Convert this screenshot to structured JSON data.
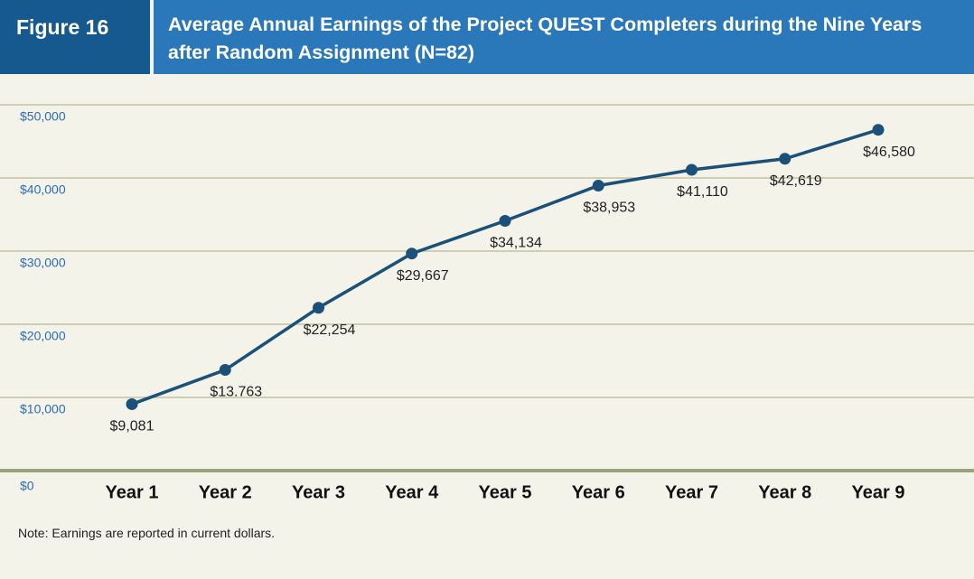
{
  "chart_data": {
    "type": "line",
    "figure_label": "Figure 16",
    "title": "Average Annual Earnings of the Project QUEST Completers during the Nine Years after Random Assignment (N=82)",
    "note": "Note: Earnings are reported in current dollars.",
    "categories": [
      "Year 1",
      "Year 2",
      "Year 3",
      "Year 4",
      "Year 5",
      "Year 6",
      "Year 7",
      "Year 8",
      "Year 9"
    ],
    "values": [
      9081,
      13763,
      22254,
      29667,
      34134,
      38953,
      41110,
      42619,
      46580
    ],
    "value_labels": [
      "$9,081",
      "$13.763",
      "$22,254",
      "$29,667",
      "$34,134",
      "$38,953",
      "$41,110",
      "$42,619",
      "$46,580"
    ],
    "color": "#1b5079",
    "ylim": [
      0,
      50000
    ],
    "yticks": [
      {
        "value": 0,
        "label": "$0"
      },
      {
        "value": 10000,
        "label": "$10,000"
      },
      {
        "value": 20000,
        "label": "$20,000"
      },
      {
        "value": 30000,
        "label": "$30,000"
      },
      {
        "value": 40000,
        "label": "$40,000"
      },
      {
        "value": 50000,
        "label": "$50,000"
      }
    ],
    "grid": true
  }
}
